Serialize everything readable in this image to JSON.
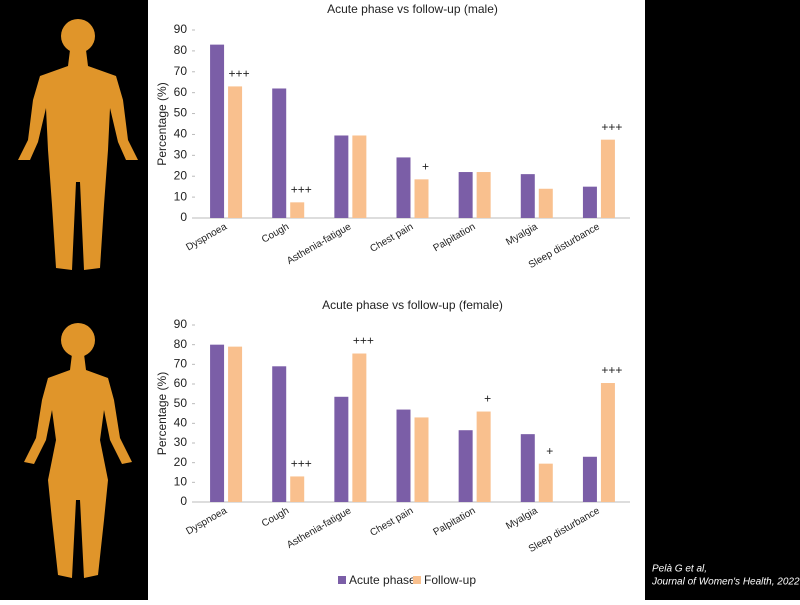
{
  "chart_data": [
    {
      "type": "bar",
      "title": "Acute phase vs follow-up (male)",
      "y_label": "Percentage (%)",
      "categories": [
        "Dyspnoea",
        "Cough",
        "Asthenia-fatigue",
        "Chest pain",
        "Palpitation",
        "Myalgia",
        "Sleep disturbance"
      ],
      "series": [
        {
          "name": "Acute phase",
          "color": "#7b5ea7",
          "values": [
            83,
            62,
            39.5,
            29,
            22,
            21,
            15
          ]
        },
        {
          "name": "Follow-up",
          "color": "#f9c08e",
          "values": [
            63,
            7.5,
            39.5,
            18.5,
            22,
            14,
            37.5
          ],
          "annotations": [
            "+++",
            "+++",
            null,
            "+",
            null,
            null,
            "+++"
          ]
        }
      ],
      "ylim": [
        0,
        90
      ],
      "yticks": [
        0,
        10,
        20,
        30,
        40,
        50,
        60,
        70,
        80,
        90
      ],
      "grid": false
    },
    {
      "type": "bar",
      "title": "Acute phase vs follow-up (female)",
      "y_label": "Percentage (%)",
      "categories": [
        "Dyspnoea",
        "Cough",
        "Asthenia-fatigue",
        "Chest pain",
        "Palpitation",
        "Myalgia",
        "Sleep disturbance"
      ],
      "series": [
        {
          "name": "Acute phase",
          "color": "#7b5ea7",
          "values": [
            80,
            69,
            53.5,
            47,
            36.5,
            34.5,
            23
          ]
        },
        {
          "name": "Follow-up",
          "color": "#f9c08e",
          "values": [
            79,
            13,
            75.5,
            43,
            46,
            19.5,
            60.5
          ],
          "annotations": [
            null,
            "+++",
            "+++",
            null,
            "+",
            "+",
            "+++"
          ]
        }
      ],
      "ylim": [
        0,
        90
      ],
      "yticks": [
        0,
        10,
        20,
        30,
        40,
        50,
        60,
        70,
        80,
        90
      ],
      "grid": false
    }
  ],
  "citation": {
    "authors": "Pelà G et al,",
    "journal": "Journal of Women's Health, 2022"
  }
}
